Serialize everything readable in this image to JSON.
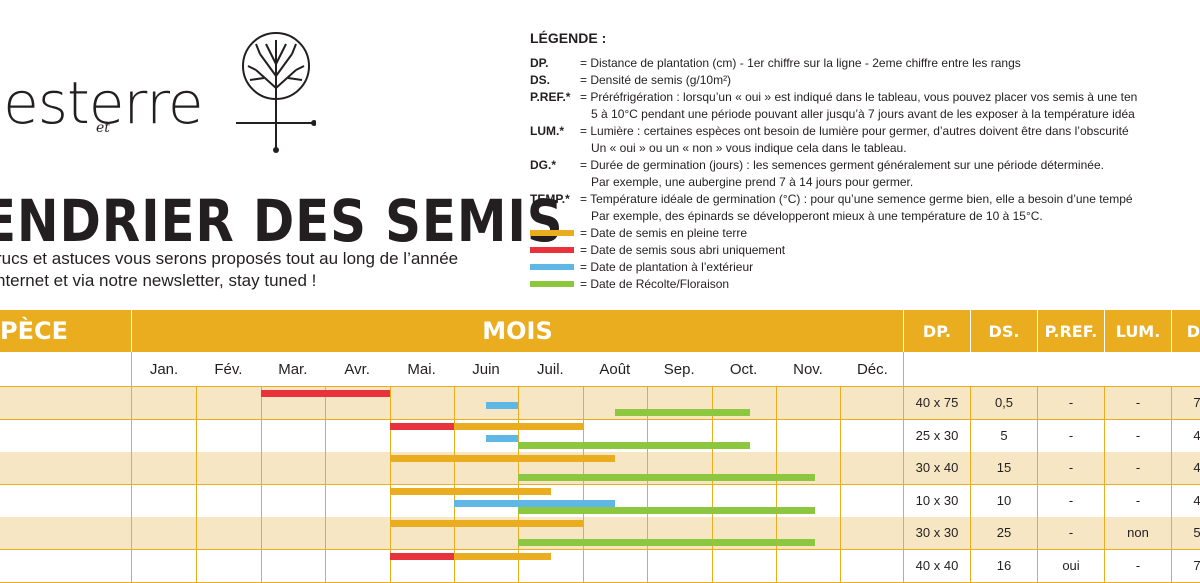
{
  "logo": {
    "text": "lesterre",
    "et": "et"
  },
  "title": "ENDRIER DES SEMIS",
  "subtitle": [
    "rucs et astuces vous serons proposés tout au long de l’année",
    "nternet et via notre newsletter, stay tuned !"
  ],
  "legend": {
    "title": "LÉGENDE :",
    "items": [
      {
        "key": "DP.",
        "lines": [
          "= Distance de plantation (cm) - 1er chiffre sur la ligne - 2eme chiffre entre les rangs"
        ]
      },
      {
        "key": "DS.",
        "lines": [
          "= Densité de semis (g/10m²)"
        ]
      },
      {
        "key": "P.REF.*",
        "lines": [
          "= Préréfrigération : lorsqu’un « oui » est indiqué dans le tableau, vous pouvez placer vos semis à une ten",
          "5 à 10°C pendant une période pouvant aller jusqu’à 7 jours avant de les exposer à la température idéa"
        ]
      },
      {
        "key": "LUM.*",
        "lines": [
          "= Lumière : certaines espèces ont besoin de lumière pour germer, d’autres doivent  être dans l’obscurité",
          "Un « oui » ou un « non » vous indique cela dans le tableau."
        ]
      },
      {
        "key": "DG.*",
        "lines": [
          "= Durée de germination (jours) : les semences germent généralement sur une période déterminée.",
          "Par exemple, une aubergine prend 7 à 14 jours pour germer."
        ]
      },
      {
        "key": "TEMP.*",
        "lines": [
          "= Température idéale de germination (°C) : pour qu’une semence germe bien, elle a besoin d’une tempé",
          "Par exemple, des épinards se développeront mieux à une température de 10 à 15°C."
        ]
      }
    ],
    "colors": [
      {
        "label": "= Date de semis en pleine terre",
        "color": "#e9ad1f"
      },
      {
        "label": "= Date de semis sous abri uniquement",
        "color": "#e8323c"
      },
      {
        "label": "= Date de plantation à l’extérieur",
        "color": "#5fb7e5"
      },
      {
        "label": "= Date de Récolte/Floraison",
        "color": "#8dc63f"
      }
    ]
  },
  "table": {
    "headers": {
      "espece": "PÈCE",
      "mois": "MOIS",
      "dp": "DP.",
      "ds": "DS.",
      "pref": "P.REF.",
      "lum": "LUM.",
      "dg": "D"
    },
    "months": [
      "Jan.",
      "Fév.",
      "Mar.",
      "Avr.",
      "Mai.",
      "Juin",
      "Juil.",
      "Août",
      "Sep.",
      "Oct.",
      "Nov.",
      "Déc."
    ],
    "rows": [
      {
        "dp": "40 x 75",
        "ds": "0,5",
        "pref": "-",
        "lum": "-",
        "dg": "7",
        "bars": [
          {
            "type": "red",
            "start": 2,
            "end": 4
          },
          {
            "type": "blue",
            "start": 5.5,
            "end": 6
          },
          {
            "type": "green",
            "start": 7.5,
            "end": 9.6
          }
        ]
      },
      {
        "dp": "25 x 30",
        "ds": "5",
        "pref": "-",
        "lum": "-",
        "dg": "4",
        "bars": [
          {
            "type": "red",
            "start": 4,
            "end": 5
          },
          {
            "type": "orange",
            "start": 5,
            "end": 7
          },
          {
            "type": "blue",
            "start": 5.5,
            "end": 6
          },
          {
            "type": "green",
            "start": 6,
            "end": 9.6
          }
        ]
      },
      {
        "dp": "30 x 40",
        "ds": "15",
        "pref": "-",
        "lum": "-",
        "dg": "4",
        "bars": [
          {
            "type": "orange",
            "start": 4,
            "end": 7.5
          },
          {
            "type": "green",
            "start": 6,
            "end": 10.6
          }
        ]
      },
      {
        "dp": "10 x 30",
        "ds": "10",
        "pref": "-",
        "lum": "-",
        "dg": "4",
        "bars": [
          {
            "type": "orange",
            "start": 4,
            "end": 6.5
          },
          {
            "type": "blue",
            "start": 5,
            "end": 7.5
          },
          {
            "type": "green",
            "start": 6,
            "end": 10.6
          }
        ]
      },
      {
        "dp": "30 x 30",
        "ds": "25",
        "pref": "-",
        "lum": "non",
        "dg": "5",
        "bars": [
          {
            "type": "orange",
            "start": 4,
            "end": 7
          },
          {
            "type": "green",
            "start": 6,
            "end": 10.6
          }
        ]
      },
      {
        "dp": "40 x 40",
        "ds": "16",
        "pref": "oui",
        "lum": "-",
        "dg": "7",
        "bars": [
          {
            "type": "red",
            "start": 4,
            "end": 5
          },
          {
            "type": "orange",
            "start": 5,
            "end": 6.5
          }
        ]
      }
    ]
  }
}
